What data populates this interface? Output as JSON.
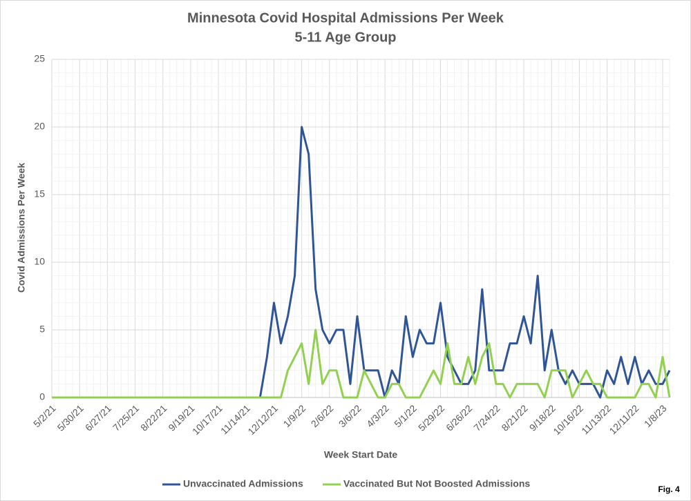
{
  "chart_data": {
    "type": "line",
    "title": "Minnesota Covid Hospital Admissions Per Week",
    "subtitle": "5-11 Age Group",
    "x_label": "Week Start Date",
    "y_label": "Covid Admissions Per Week",
    "annotation": "Fig. 4",
    "categories": [
      "5/2/21",
      null,
      null,
      null,
      "5/30/21",
      null,
      null,
      null,
      "6/27/21",
      null,
      null,
      null,
      "7/25/21",
      null,
      null,
      null,
      "8/22/21",
      null,
      null,
      null,
      "9/19/21",
      null,
      null,
      null,
      "10/17/21",
      null,
      null,
      null,
      "11/14/21",
      null,
      null,
      null,
      "12/12/21",
      null,
      null,
      null,
      "1/9/22",
      null,
      null,
      null,
      "2/6/22",
      null,
      null,
      null,
      "3/6/22",
      null,
      null,
      null,
      "4/3/22",
      null,
      null,
      null,
      "5/1/22",
      null,
      null,
      null,
      "5/29/22",
      null,
      null,
      null,
      "6/26/22",
      null,
      null,
      null,
      "7/24/22",
      null,
      null,
      null,
      "8/21/22",
      null,
      null,
      null,
      "9/18/22",
      null,
      null,
      null,
      "10/16/22",
      null,
      null,
      null,
      "11/13/22",
      null,
      null,
      null,
      "12/11/22",
      null,
      null,
      null,
      "1/8/23",
      null
    ],
    "series": [
      {
        "name": "Unvaccinated Admissions",
        "color": "#2f5597",
        "values": [
          0,
          0,
          0,
          0,
          0,
          0,
          0,
          0,
          0,
          0,
          0,
          0,
          0,
          0,
          0,
          0,
          0,
          0,
          0,
          0,
          0,
          0,
          0,
          0,
          0,
          0,
          0,
          0,
          0,
          0,
          0,
          3,
          7,
          4,
          6,
          9,
          20,
          18,
          8,
          5,
          4,
          5,
          5,
          1,
          6,
          2,
          2,
          2,
          0,
          2,
          1,
          6,
          3,
          5,
          4,
          4,
          7,
          3,
          2,
          1,
          1,
          2,
          8,
          2,
          2,
          2,
          4,
          4,
          6,
          4,
          9,
          2,
          5,
          2,
          1,
          2,
          1,
          1,
          1,
          0,
          2,
          1,
          3,
          1,
          3,
          1,
          2,
          1,
          1,
          2
        ]
      },
      {
        "name": "Vaccinated But Not Boosted Admissions",
        "color": "#92d050",
        "values": [
          0,
          0,
          0,
          0,
          0,
          0,
          0,
          0,
          0,
          0,
          0,
          0,
          0,
          0,
          0,
          0,
          0,
          0,
          0,
          0,
          0,
          0,
          0,
          0,
          0,
          0,
          0,
          0,
          0,
          0,
          0,
          0,
          0,
          0,
          2,
          3,
          4,
          1,
          5,
          1,
          2,
          2,
          0,
          0,
          0,
          2,
          1,
          0,
          0,
          1,
          1,
          0,
          0,
          0,
          1,
          2,
          1,
          4,
          1,
          1,
          3,
          1,
          3,
          4,
          1,
          1,
          0,
          1,
          1,
          1,
          1,
          0,
          2,
          2,
          2,
          0,
          1,
          2,
          1,
          1,
          0,
          0,
          0,
          0,
          0,
          1,
          1,
          0,
          3,
          0
        ]
      }
    ],
    "ylim": [
      0,
      25
    ],
    "yticks": [
      0,
      5,
      10,
      15,
      20,
      25
    ],
    "grid": true,
    "legend": "bottom"
  }
}
